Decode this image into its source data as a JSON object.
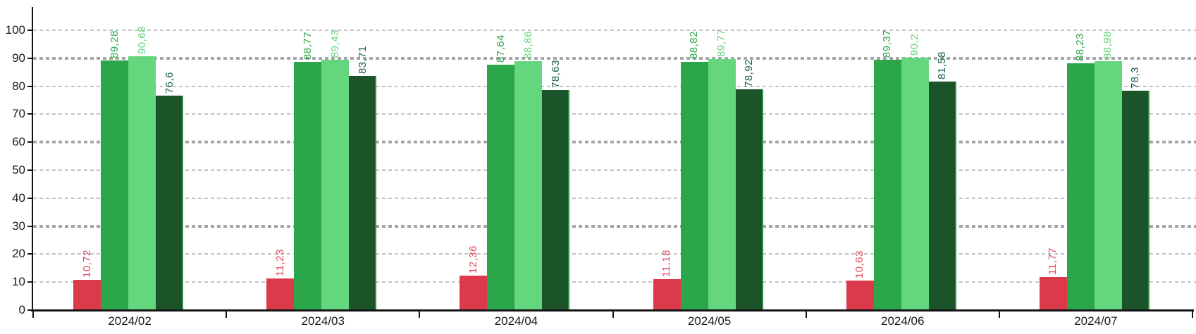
{
  "chart_data": {
    "type": "bar",
    "title": "",
    "xlabel": "",
    "ylabel": "",
    "categories": [
      "2024/02",
      "2024/03",
      "2024/04",
      "2024/05",
      "2024/06",
      "2024/07"
    ],
    "series": [
      {
        "name": "red-series",
        "color": "#dc3a4c",
        "label_color": "#e2485c",
        "values": [
          10.72,
          11.23,
          12.36,
          11.18,
          10.63,
          11.77
        ],
        "labels": [
          "10,72",
          "11,23",
          "12,36",
          "11,18",
          "10,63",
          "11,77"
        ]
      },
      {
        "name": "green-series",
        "color": "#2ca64a",
        "label_color": "#2ca64a",
        "values": [
          89.28,
          88.77,
          87.64,
          88.82,
          89.37,
          88.23
        ],
        "labels": [
          "89,28",
          "88,77",
          "87,64",
          "88,82",
          "89,37",
          "88,23"
        ]
      },
      {
        "name": "light-green-series",
        "color": "#64d67e",
        "label_color": "#64d67e",
        "values": [
          90.68,
          89.43,
          88.86,
          89.77,
          90.2,
          88.98
        ],
        "labels": [
          "90,68",
          "89,43",
          "88,86",
          "89,77",
          "90,2",
          "88,98"
        ]
      },
      {
        "name": "dark-green-series",
        "color": "#1a5428",
        "label_color": "#17604a",
        "edge_color": "#378c4b",
        "values": [
          76.6,
          83.71,
          78.63,
          78.92,
          81.58,
          78.3
        ],
        "labels": [
          "76,6",
          "83,71",
          "78,63",
          "78,92",
          "81,58",
          "78,3"
        ]
      }
    ],
    "ylim": [
      0,
      100
    ],
    "yticks": [
      0,
      10,
      20,
      30,
      40,
      50,
      60,
      70,
      80,
      90,
      100
    ],
    "bold_gridlines": [
      30,
      60,
      90
    ],
    "grid": "horizontal-dashed",
    "legend": "none",
    "value_label_rotation": -90,
    "decimal_separator": ",",
    "axis_color": "#141414"
  }
}
